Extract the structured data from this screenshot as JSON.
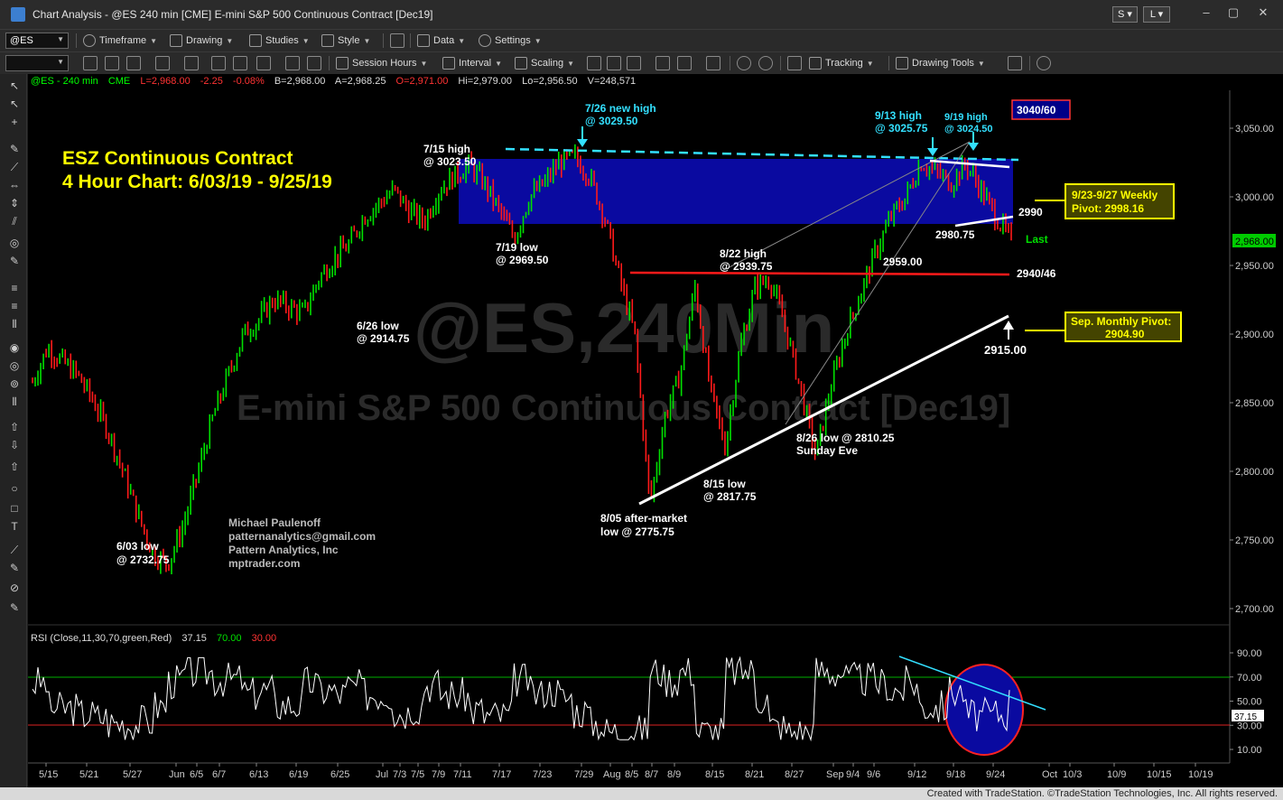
{
  "window": {
    "title": "Chart Analysis - @ES 240 min [CME] E-mini S&P 500 Continuous Contract [Dec19]",
    "link_s": "S",
    "link_l": "L"
  },
  "toolbar1": {
    "symbol": "@ES",
    "timeframe": "Timeframe",
    "drawing": "Drawing",
    "studies": "Studies",
    "style": "Style",
    "data": "Data",
    "settings": "Settings"
  },
  "toolbar2": {
    "session_hours": "Session Hours",
    "interval": "Interval",
    "scaling": "Scaling",
    "tracking": "Tracking",
    "drawing_tools": "Drawing Tools"
  },
  "status_line": {
    "symbol": "@ES - 240 min",
    "exchange": "CME",
    "last": "L=2,968.00",
    "change": "-2.25",
    "pct": "-0.08%",
    "bid": "B=2,968.00",
    "ask": "A=2,968.25",
    "open": "O=2,971.00",
    "high": "Hi=2,979.00",
    "low": "Lo=2,956.50",
    "volume": "V=248,571"
  },
  "watermark": {
    "line1": "@ES,240Min",
    "line2": "E-mini S&P 500 Continuous Contract [Dec19]"
  },
  "annotations": {
    "title1": "ESZ Continuous Contract",
    "title2": "4 Hour Chart: 6/03/19 - 9/25/19",
    "author": [
      "Michael Paulenoff",
      "patternanalytics@gmail.com",
      "Pattern Analytics, Inc",
      "mptrader.com"
    ],
    "low_0603": [
      "6/03 low",
      "@ 2732.75"
    ],
    "low_0626": [
      "6/26 low",
      "@ 2914.75"
    ],
    "high_0715": [
      "7/15 high",
      "@ 3023.50"
    ],
    "low_0719": [
      "7/19 low",
      "@ 2969.50"
    ],
    "high_0726": [
      "7/26 new high",
      "@ 3029.50"
    ],
    "low_0805": [
      "8/05 after-market",
      "low @ 2775.75"
    ],
    "low_0815": [
      "8/15 low",
      "@ 2817.75"
    ],
    "high_0822": [
      "8/22 high",
      "@ 2939.75"
    ],
    "low_0826": [
      "8/26 low @ 2810.25",
      "Sunday Eve"
    ],
    "high_0913": [
      "9/13 high",
      "@ 3025.75"
    ],
    "high_0919": [
      "9/19 high",
      "@ 3024.50"
    ],
    "level_2959": "2959.00",
    "level_2980": "2980.75",
    "level_2990": "2990",
    "level_2940": "2940/46",
    "level_2915": "2915.00",
    "last_label": "Last",
    "box_3040": "3040/60",
    "weekly_pivot": [
      "9/23-9/27 Weekly",
      "Pivot: 2998.16"
    ],
    "monthly_pivot": [
      "Sep. Monthly Pivot:",
      "2904.90"
    ]
  },
  "price_axis": {
    "ticks": [
      "3,050.00",
      "3,000.00",
      "2,950.00",
      "2,900.00",
      "2,850.00",
      "2,800.00",
      "2,750.00",
      "2,700.00"
    ],
    "last_price": "2,968.00"
  },
  "rsi": {
    "label": "RSI (Close,11,30,70,green,Red)",
    "value": "37.15",
    "overbought": "70.00",
    "oversold": "30.00",
    "ticks": [
      "90.00",
      "70.00",
      "50.00",
      "30.00",
      "10.00"
    ]
  },
  "date_axis": [
    "5/15",
    "5/21",
    "5/27",
    "Jun",
    "6/5",
    "6/7",
    "6/13",
    "6/19",
    "6/25",
    "Jul",
    "7/3",
    "7/5",
    "7/9",
    "7/11",
    "7/17",
    "7/23",
    "7/29",
    "Aug",
    "8/5",
    "8/7",
    "8/9",
    "8/15",
    "8/21",
    "8/27",
    "Sep",
    "9/4",
    "9/6",
    "9/12",
    "9/18",
    "9/24",
    "Oct",
    "10/3",
    "10/9",
    "10/15",
    "10/19"
  ],
  "footer": "Created with TradeStation. ©TradeStation Technologies, Inc. All rights reserved.",
  "colors": {
    "up_bar": "#00e000",
    "down_bar": "#ff1a1a",
    "zone": "#0a0aa0",
    "annotation_yellow": "#ffff00",
    "annotation_cyan": "#33e0ff"
  },
  "chart_data": {
    "type": "line",
    "title": "ESZ Continuous Contract",
    "subtitle": "4 Hour Chart: 6/03/19 - 9/25/19",
    "ylim": [
      2670,
      3080
    ],
    "series": [
      {
        "values": [
          2865,
          2890,
          2880,
          2870,
          2852,
          2830,
          2800,
          2768,
          2740,
          2733,
          2760,
          2800,
          2840,
          2870,
          2900,
          2910,
          2925,
          2920,
          2915,
          2940,
          2955,
          2965,
          2985,
          2995,
          3005,
          2990,
          2982,
          3005,
          3015,
          3023,
          3010,
          2990,
          2970,
          3000,
          3010,
          3025,
          3029,
          3015,
          2985,
          2940,
          2900,
          2776,
          2840,
          2870,
          2935,
          2860,
          2818,
          2890,
          2935,
          2940,
          2905,
          2860,
          2811,
          2860,
          2900,
          2930,
          2960,
          2985,
          3000,
          3025,
          3018,
          3010,
          3024,
          3005,
          2985,
          2968
        ]
      }
    ]
  }
}
